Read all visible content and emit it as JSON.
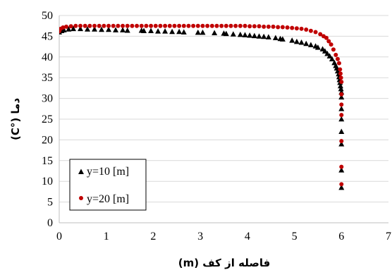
{
  "chart_data": {
    "type": "scatter",
    "xlabel": "فاصله از کف (m)",
    "ylabel": "دما (°C)",
    "xlim": [
      0,
      7
    ],
    "ylim": [
      0,
      50
    ],
    "xticks": [
      "0",
      "1",
      "2",
      "3",
      "4",
      "5",
      "6",
      "7"
    ],
    "yticks": [
      "0",
      "5",
      "10",
      "15",
      "20",
      "25",
      "30",
      "35",
      "40",
      "45",
      "50"
    ],
    "grid": "horizontal",
    "legend_position": "bottom-left",
    "series": [
      {
        "name": "y=10 [m]",
        "marker": "triangle",
        "color": "#000000",
        "x": [
          0.0,
          0.05,
          0.1,
          0.2,
          0.3,
          0.45,
          0.6,
          0.75,
          0.9,
          1.05,
          1.2,
          1.35,
          1.45,
          1.75,
          1.8,
          1.95,
          2.1,
          2.25,
          2.4,
          2.55,
          2.65,
          2.95,
          3.05,
          3.3,
          3.5,
          3.55,
          3.7,
          3.85,
          3.95,
          4.05,
          4.15,
          4.25,
          4.35,
          4.45,
          4.6,
          4.7,
          4.75,
          4.95,
          5.05,
          5.15,
          5.25,
          5.35,
          5.45,
          5.5,
          5.6,
          5.65,
          5.7,
          5.75,
          5.8,
          5.85,
          5.88,
          5.9,
          5.92,
          5.94,
          5.95,
          5.96,
          5.97,
          5.98,
          5.99,
          6.0,
          6.0,
          6.0,
          6.0,
          6.0,
          6.0,
          6.0,
          6.0
        ],
        "y": [
          46.0,
          46.3,
          46.5,
          46.7,
          46.8,
          46.8,
          46.7,
          46.7,
          46.6,
          46.6,
          46.5,
          46.5,
          46.4,
          46.4,
          46.3,
          46.3,
          46.2,
          46.2,
          46.1,
          46.1,
          46.0,
          45.9,
          45.9,
          45.8,
          45.7,
          45.6,
          45.5,
          45.4,
          45.3,
          45.2,
          45.1,
          45.0,
          44.9,
          44.8,
          44.6,
          44.4,
          44.3,
          44.0,
          43.7,
          43.5,
          43.2,
          42.9,
          42.6,
          42.3,
          41.9,
          41.4,
          40.8,
          40.2,
          39.5,
          38.6,
          37.9,
          37.3,
          36.6,
          35.9,
          35.2,
          34.5,
          33.8,
          33.0,
          32.3,
          30.3,
          25.0,
          19.0,
          12.7,
          8.5,
          31.5,
          27.5,
          22.0
        ]
      },
      {
        "name": "y=20 [m]",
        "marker": "circle",
        "color": "#c00000",
        "x": [
          0.0,
          0.03,
          0.08,
          0.15,
          0.25,
          0.35,
          0.45,
          0.55,
          0.65,
          0.75,
          0.85,
          0.95,
          1.05,
          1.15,
          1.25,
          1.35,
          1.45,
          1.55,
          1.65,
          1.75,
          1.85,
          1.95,
          2.05,
          2.15,
          2.25,
          2.35,
          2.45,
          2.55,
          2.65,
          2.75,
          2.85,
          2.95,
          3.05,
          3.15,
          3.25,
          3.35,
          3.45,
          3.55,
          3.65,
          3.75,
          3.85,
          3.95,
          4.05,
          4.15,
          4.25,
          4.35,
          4.45,
          4.55,
          4.65,
          4.75,
          4.85,
          4.95,
          5.05,
          5.15,
          5.25,
          5.35,
          5.45,
          5.55,
          5.62,
          5.68,
          5.73,
          5.78,
          5.83,
          5.88,
          5.92,
          5.95,
          5.97,
          5.98,
          5.99,
          6.0,
          6.0,
          6.0,
          6.0,
          6.0,
          6.0,
          6.0
        ],
        "y": [
          46.2,
          46.8,
          47.1,
          47.3,
          47.4,
          47.5,
          47.5,
          47.5,
          47.5,
          47.5,
          47.5,
          47.5,
          47.5,
          47.5,
          47.5,
          47.5,
          47.5,
          47.5,
          47.5,
          47.5,
          47.5,
          47.5,
          47.5,
          47.5,
          47.5,
          47.5,
          47.5,
          47.5,
          47.5,
          47.5,
          47.5,
          47.5,
          47.5,
          47.5,
          47.5,
          47.5,
          47.5,
          47.5,
          47.5,
          47.5,
          47.5,
          47.5,
          47.4,
          47.4,
          47.4,
          47.3,
          47.3,
          47.3,
          47.2,
          47.2,
          47.1,
          47.0,
          46.9,
          46.8,
          46.6,
          46.3,
          46.0,
          45.5,
          45.0,
          44.6,
          43.8,
          43.0,
          41.8,
          40.5,
          39.5,
          38.5,
          37.0,
          36.0,
          35.0,
          34.0,
          31.0,
          26.0,
          19.7,
          13.5,
          9.3,
          28.5
        ]
      }
    ]
  }
}
